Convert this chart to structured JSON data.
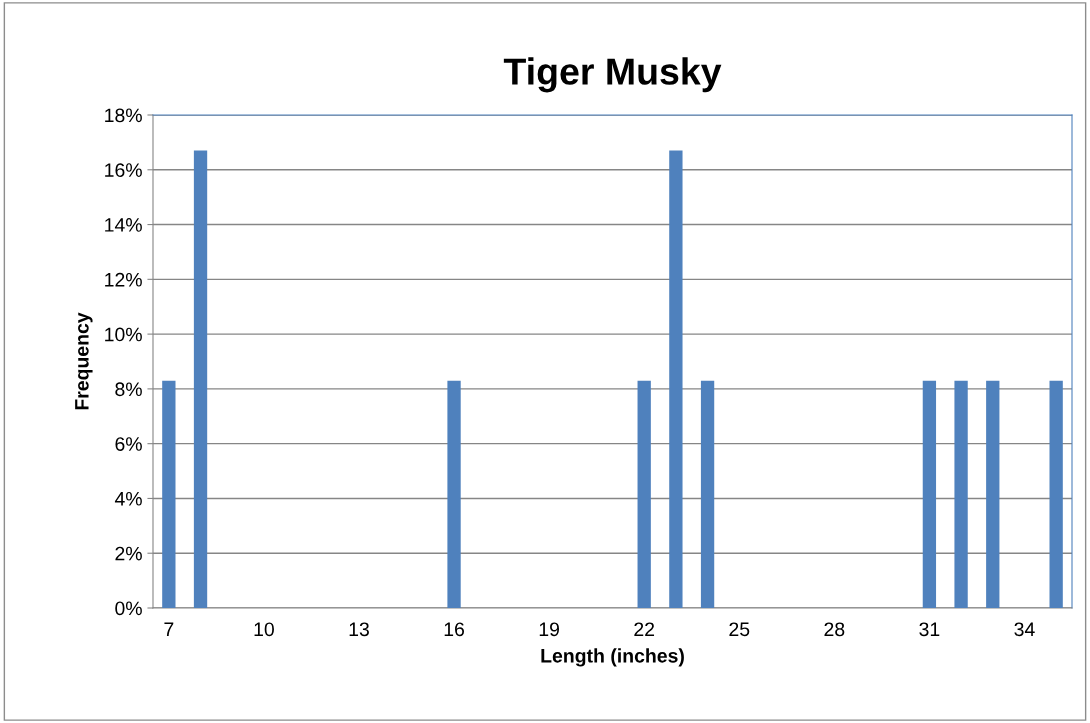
{
  "chart_data": {
    "type": "bar",
    "title": "Tiger Musky",
    "xlabel": "Length (inches)",
    "ylabel": "Frequency",
    "categories": [
      "7",
      null,
      null,
      "10",
      null,
      null,
      "13",
      null,
      null,
      "16",
      null,
      null,
      "19",
      null,
      null,
      "22",
      null,
      null,
      "25",
      null,
      null,
      "28",
      null,
      null,
      "31",
      null,
      null,
      "34",
      null
    ],
    "values": [
      8.3,
      16.7,
      0,
      0,
      0,
      0,
      0,
      0,
      0,
      8.3,
      0,
      0,
      0,
      0,
      0,
      8.3,
      16.7,
      8.3,
      0,
      0,
      0,
      0,
      0,
      0,
      8.3,
      8.3,
      8.3,
      0,
      8.3
    ],
    "color": "#4f81bd",
    "ylim": [
      0,
      18
    ],
    "yticks": [
      {
        "value": 0,
        "label": "0%"
      },
      {
        "value": 2,
        "label": "2%"
      },
      {
        "value": 4,
        "label": "4%"
      },
      {
        "value": 6,
        "label": "6%"
      },
      {
        "value": 8,
        "label": "8%"
      },
      {
        "value": 10,
        "label": "10%"
      },
      {
        "value": 12,
        "label": "12%"
      },
      {
        "value": 14,
        "label": "14%"
      },
      {
        "value": 16,
        "label": "16%"
      },
      {
        "value": 18,
        "label": "18%"
      }
    ],
    "grid": "y",
    "legend": false
  }
}
